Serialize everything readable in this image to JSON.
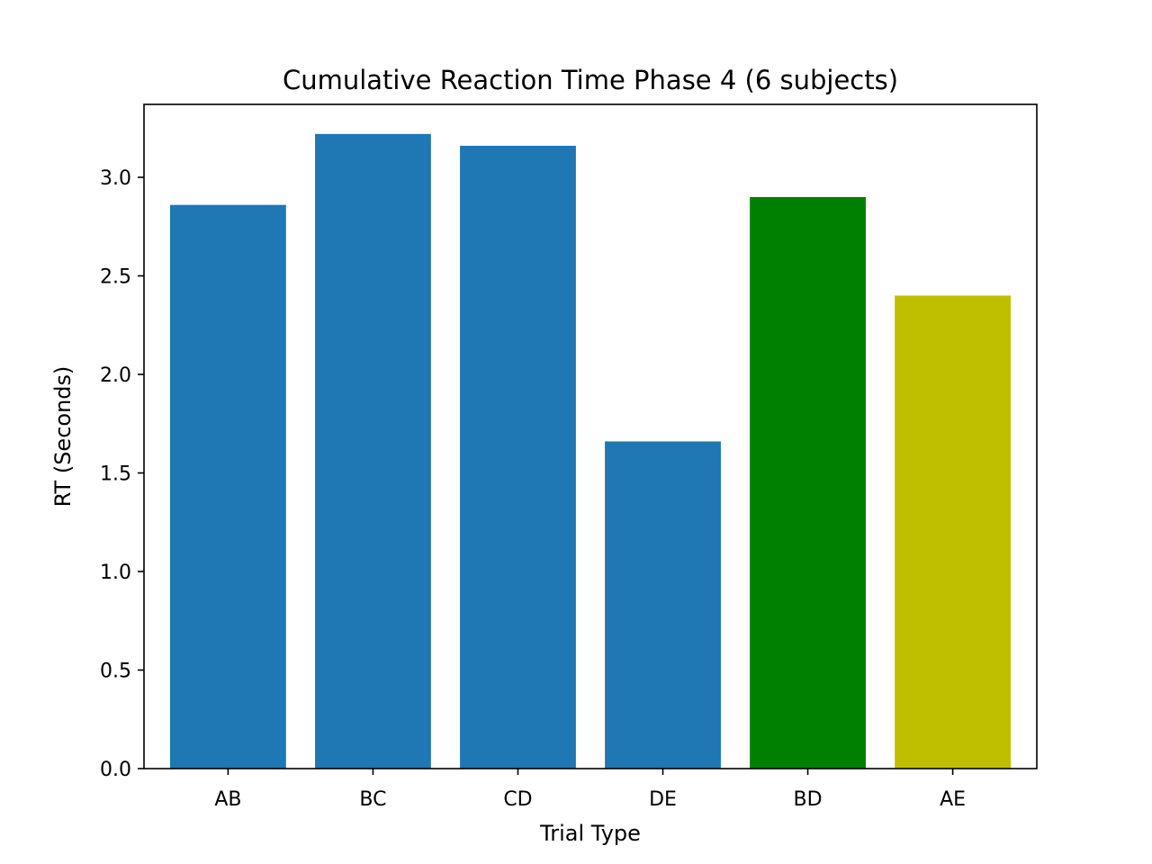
{
  "chart_data": {
    "type": "bar",
    "title": "Cumulative Reaction Time Phase 4 (6 subjects)",
    "xlabel": "Trial Type",
    "ylabel": "RT (Seconds)",
    "categories": [
      "AB",
      "BC",
      "CD",
      "DE",
      "BD",
      "AE"
    ],
    "values": [
      2.86,
      3.22,
      3.16,
      1.66,
      2.9,
      2.4
    ],
    "colors": [
      "#1f77b4",
      "#1f77b4",
      "#1f77b4",
      "#1f77b4",
      "#008000",
      "#bfbf00"
    ],
    "ylim": [
      0,
      3.37
    ],
    "yticks": [
      0.0,
      0.5,
      1.0,
      1.5,
      2.0,
      2.5,
      3.0
    ],
    "ytick_labels": [
      "0.0",
      "0.5",
      "1.0",
      "1.5",
      "2.0",
      "2.5",
      "3.0"
    ],
    "grid": false,
    "legend": "none"
  }
}
